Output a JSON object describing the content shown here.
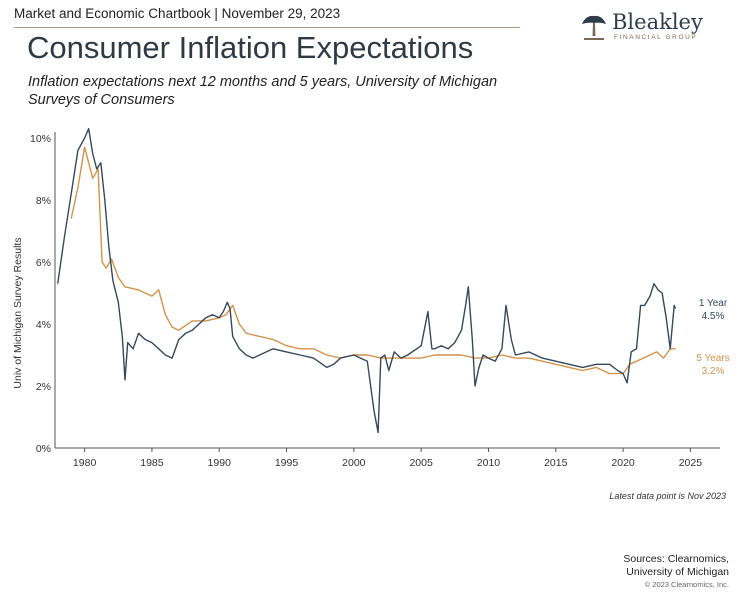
{
  "header": {
    "text": "Market and Economic Chartbook | November 29, 2023",
    "logo_name": "Bleakley",
    "logo_sub": "FINANCIAL GROUP"
  },
  "title": "Consumer Inflation Expectations",
  "subtitle": "Inflation expectations next 12 months and 5 years, University of Michigan Surveys of Consumers",
  "note": "Latest data point is Nov 2023",
  "sources_line1": "Sources: Clearnomics,",
  "sources_line2": "University of Michigan",
  "copyright": "© 2023 Clearnomics, Inc.",
  "colors": {
    "one_year": "#34495b",
    "five_year": "#d4924a",
    "axis": "#555555"
  },
  "chart_data": {
    "type": "line",
    "title": "Consumer Inflation Expectations",
    "xlabel": "",
    "ylabel": "Univ of Michigan Survey Results",
    "xlim": [
      1977.8,
      2027.2
    ],
    "ylim": [
      0,
      10
    ],
    "x_ticks": [
      1980,
      1985,
      1990,
      1995,
      2000,
      2005,
      2010,
      2015,
      2020,
      2025
    ],
    "y_ticks": [
      0,
      2,
      4,
      6,
      8,
      10
    ],
    "y_tick_labels": [
      "0%",
      "2%",
      "4%",
      "6%",
      "8%",
      "10%"
    ],
    "grid": false,
    "series": [
      {
        "name": "1 Year",
        "end_value_label": "4.5%",
        "x": [
          1978.0,
          1978.5,
          1979.0,
          1979.5,
          1980.0,
          1980.3,
          1980.6,
          1980.9,
          1981.2,
          1981.5,
          1981.8,
          1982.1,
          1982.5,
          1982.8,
          1983.0,
          1983.2,
          1983.6,
          1984.0,
          1984.5,
          1985.0,
          1985.5,
          1986.0,
          1986.5,
          1987.0,
          1987.5,
          1988.0,
          1988.5,
          1989.0,
          1989.5,
          1990.0,
          1990.3,
          1990.6,
          1990.8,
          1991.0,
          1991.5,
          1992.0,
          1992.5,
          1993.0,
          1993.5,
          1994.0,
          1995.0,
          1996.0,
          1997.0,
          1998.0,
          1998.5,
          1999.0,
          2000.0,
          2001.0,
          2001.5,
          2001.8,
          2002.0,
          2002.3,
          2002.6,
          2003.0,
          2003.5,
          2004.0,
          2005.0,
          2005.5,
          2005.8,
          2006.0,
          2006.5,
          2007.0,
          2007.5,
          2008.0,
          2008.3,
          2008.5,
          2008.8,
          2009.0,
          2009.3,
          2009.6,
          2010.0,
          2010.5,
          2011.0,
          2011.3,
          2011.7,
          2012.0,
          2013.0,
          2014.0,
          2015.0,
          2016.0,
          2017.0,
          2018.0,
          2019.0,
          2019.6,
          2020.0,
          2020.3,
          2020.6,
          2021.0,
          2021.3,
          2021.6,
          2022.0,
          2022.3,
          2022.6,
          2022.9,
          2023.2,
          2023.5,
          2023.8,
          2023.9
        ],
        "values": [
          5.3,
          6.8,
          8.2,
          9.6,
          10.0,
          10.3,
          9.5,
          9.0,
          9.2,
          8.0,
          6.5,
          5.4,
          4.7,
          3.6,
          2.2,
          3.4,
          3.2,
          3.7,
          3.5,
          3.4,
          3.2,
          3.0,
          2.9,
          3.5,
          3.7,
          3.8,
          4.0,
          4.2,
          4.3,
          4.2,
          4.4,
          4.7,
          4.5,
          3.6,
          3.2,
          3.0,
          2.9,
          3.0,
          3.1,
          3.2,
          3.1,
          3.0,
          2.9,
          2.6,
          2.7,
          2.9,
          3.0,
          2.8,
          1.2,
          0.5,
          2.9,
          3.0,
          2.5,
          3.1,
          2.9,
          3.0,
          3.3,
          4.4,
          3.2,
          3.2,
          3.3,
          3.2,
          3.4,
          3.8,
          4.6,
          5.2,
          3.5,
          2.0,
          2.6,
          3.0,
          2.9,
          2.8,
          3.2,
          4.6,
          3.5,
          3.0,
          3.1,
          2.9,
          2.8,
          2.7,
          2.6,
          2.7,
          2.7,
          2.5,
          2.4,
          2.1,
          3.1,
          3.2,
          4.6,
          4.6,
          4.9,
          5.3,
          5.1,
          5.0,
          4.2,
          3.2,
          4.6,
          4.5
        ]
      },
      {
        "name": "5 Years",
        "end_value_label": "3.2%",
        "x": [
          1979.0,
          1979.5,
          1980.0,
          1980.3,
          1980.6,
          1981.0,
          1981.3,
          1981.6,
          1982.0,
          1982.5,
          1983.0,
          1984.0,
          1985.0,
          1985.5,
          1986.0,
          1986.5,
          1987.0,
          1988.0,
          1989.0,
          1990.0,
          1990.5,
          1991.0,
          1991.5,
          1992.0,
          1993.0,
          1994.0,
          1995.0,
          1996.0,
          1997.0,
          1998.0,
          1999.0,
          2000.0,
          2001.0,
          2002.0,
          2003.0,
          2004.0,
          2005.0,
          2006.0,
          2007.0,
          2008.0,
          2009.0,
          2010.0,
          2011.0,
          2012.0,
          2013.0,
          2014.0,
          2015.0,
          2016.0,
          2017.0,
          2018.0,
          2019.0,
          2020.0,
          2020.5,
          2021.0,
          2021.5,
          2022.0,
          2022.5,
          2023.0,
          2023.5,
          2023.9
        ],
        "values": [
          7.4,
          8.4,
          9.7,
          9.2,
          8.7,
          9.0,
          6.0,
          5.8,
          6.1,
          5.5,
          5.2,
          5.1,
          4.9,
          5.1,
          4.3,
          3.9,
          3.8,
          4.1,
          4.1,
          4.2,
          4.3,
          4.6,
          4.0,
          3.7,
          3.6,
          3.5,
          3.3,
          3.2,
          3.2,
          3.0,
          2.9,
          3.0,
          3.0,
          2.9,
          2.9,
          2.9,
          2.9,
          3.0,
          3.0,
          3.0,
          2.9,
          2.9,
          3.0,
          2.9,
          2.9,
          2.8,
          2.7,
          2.6,
          2.5,
          2.6,
          2.4,
          2.4,
          2.7,
          2.8,
          2.9,
          3.0,
          3.1,
          2.9,
          3.2,
          3.2
        ]
      }
    ]
  }
}
